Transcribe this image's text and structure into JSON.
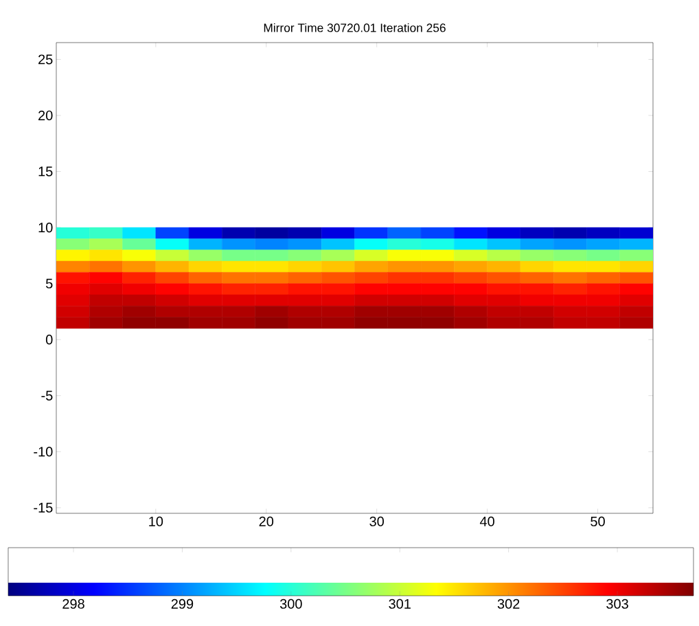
{
  "chart_data": {
    "type": "heatmap",
    "title": "Mirror Time 30720.01 Iteration 256",
    "x": [
      2.5,
      5.5,
      8.5,
      11.5,
      14.5,
      17.5,
      20.5,
      23.5,
      26.5,
      29.5,
      32.5,
      35.5,
      38.5,
      41.5,
      44.5,
      47.5,
      50.5,
      53.5
    ],
    "y": [
      9.5,
      8.5,
      7.5,
      6.5,
      5.5,
      4.5,
      3.5,
      2.5,
      1.5
    ],
    "cells": [
      [
        300.0,
        300.1,
        299.6,
        298.6,
        298.0,
        297.7,
        297.6,
        297.7,
        298.0,
        298.5,
        298.8,
        298.6,
        298.3,
        298.0,
        297.8,
        297.7,
        297.8,
        297.9
      ],
      [
        300.6,
        300.8,
        300.4,
        299.8,
        299.3,
        299.1,
        299.0,
        299.1,
        299.4,
        299.8,
        300.0,
        299.9,
        299.6,
        299.4,
        299.2,
        299.1,
        299.2,
        299.3
      ],
      [
        301.4,
        301.5,
        301.3,
        301.0,
        300.7,
        300.5,
        300.5,
        300.6,
        300.8,
        301.1,
        301.3,
        301.3,
        301.1,
        300.9,
        300.7,
        300.6,
        300.5,
        300.6
      ],
      [
        302.1,
        302.2,
        302.0,
        301.8,
        301.6,
        301.5,
        301.5,
        301.6,
        301.7,
        301.9,
        302.0,
        302.0,
        301.9,
        301.8,
        301.6,
        301.5,
        301.5,
        301.6
      ],
      [
        302.8,
        302.9,
        302.7,
        302.5,
        302.3,
        302.2,
        302.2,
        302.3,
        302.4,
        302.5,
        302.6,
        302.6,
        302.5,
        302.4,
        302.3,
        302.2,
        302.3,
        302.4
      ],
      [
        303.0,
        303.1,
        303.0,
        302.9,
        302.8,
        302.7,
        302.7,
        302.8,
        302.8,
        302.9,
        302.9,
        302.9,
        302.9,
        302.8,
        302.8,
        302.7,
        302.8,
        302.9
      ],
      [
        303.1,
        303.3,
        303.3,
        303.2,
        303.1,
        303.1,
        303.1,
        303.1,
        303.1,
        303.2,
        303.2,
        303.2,
        303.1,
        303.1,
        303.0,
        303.0,
        303.0,
        303.1
      ],
      [
        303.2,
        303.4,
        303.5,
        303.4,
        303.4,
        303.4,
        303.5,
        303.4,
        303.4,
        303.5,
        303.5,
        303.5,
        303.4,
        303.3,
        303.3,
        303.2,
        303.2,
        303.3
      ],
      [
        303.3,
        303.5,
        303.6,
        303.6,
        303.5,
        303.5,
        303.6,
        303.5,
        303.5,
        303.6,
        303.6,
        303.6,
        303.5,
        303.4,
        303.4,
        303.3,
        303.3,
        303.4
      ]
    ],
    "xlim": [
      1,
      55
    ],
    "ylim": [
      -15.5,
      26.5
    ],
    "xticks": [
      10,
      20,
      30,
      40,
      50
    ],
    "yticks": [
      -15,
      -10,
      -5,
      0,
      5,
      10,
      15,
      20,
      25
    ],
    "clim": [
      297.4,
      303.7
    ],
    "cticks": [
      298,
      299,
      300,
      301,
      302,
      303
    ]
  }
}
